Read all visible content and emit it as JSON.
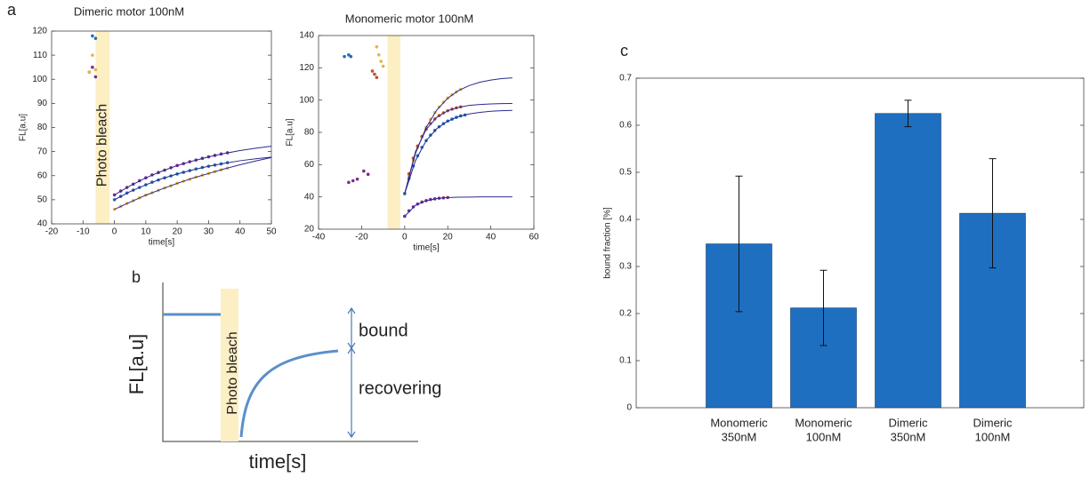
{
  "panels": [
    "a",
    "b",
    "c"
  ],
  "schematic": {
    "ylabel": "FL[a.u]",
    "xlabel": "time[s]",
    "band_label": "Photo bleach",
    "labels": [
      "bound",
      "recovering"
    ]
  },
  "chart_data": [
    {
      "type": "scatter",
      "title": "Dimeric motor 100nM",
      "xlabel": "time[s]",
      "ylabel": "FL[a.u]",
      "xlim": [
        -20,
        50
      ],
      "ylim": [
        40,
        120
      ],
      "xticks": [
        -20,
        -10,
        0,
        10,
        20,
        30,
        40,
        50
      ],
      "yticks": [
        40,
        50,
        60,
        70,
        80,
        90,
        100,
        110,
        120
      ],
      "band": {
        "x": [
          -6,
          -1.5
        ],
        "label": "Photo bleach",
        "color": "#fdefc4"
      },
      "series": [
        {
          "mode": "markers",
          "color": "#7b2d8e",
          "x": [
            -8,
            -7,
            -6,
            0,
            2,
            4,
            6,
            8,
            10,
            12,
            14,
            16,
            18,
            20,
            22,
            24,
            26,
            28,
            30,
            32,
            34,
            36
          ],
          "values": [
            103,
            105,
            101,
            52,
            53.6,
            55.1,
            56.5,
            57.9,
            59.1,
            60.3,
            61.3,
            62.3,
            63.3,
            64.2,
            65,
            65.8,
            66.5,
            67.2,
            67.8,
            68.4,
            69,
            69.5
          ]
        },
        {
          "mode": "markers",
          "color": "#1f6fba",
          "x": [
            -7,
            -6,
            0,
            2,
            4,
            6,
            8,
            10,
            12,
            14,
            16,
            18,
            20,
            22,
            24,
            26,
            28,
            30,
            32,
            34,
            36
          ],
          "values": [
            118,
            117,
            50,
            51.4,
            52.8,
            54,
            55.1,
            56.2,
            57.3,
            58.2,
            59.1,
            59.9,
            60.7,
            61.4,
            62.1,
            62.8,
            63.4,
            63.9,
            64.4,
            64.9,
            65.4
          ]
        },
        {
          "mode": "markers",
          "color": "#e8b341",
          "x": [
            -8,
            -7,
            -6,
            0,
            2,
            4,
            6,
            8,
            10,
            12,
            14,
            16,
            18,
            20,
            22,
            24,
            26,
            28,
            30,
            32,
            34,
            36
          ],
          "values": [
            103,
            110,
            104,
            46,
            47.2,
            48.5,
            49.6,
            50.8,
            51.9,
            52.9,
            53.9,
            54.9,
            55.8,
            56.8,
            57.7,
            58.5,
            59.4,
            60.2,
            60.9,
            61.7,
            62.4,
            63.1
          ]
        },
        {
          "mode": "line",
          "color": "#2b2b8f",
          "x": [
            0,
            5,
            10,
            15,
            20,
            25,
            30,
            35,
            40,
            45,
            50
          ],
          "values": [
            52,
            55.8,
            59.1,
            61.8,
            64.2,
            66.1,
            67.8,
            69.2,
            70.4,
            71.4,
            72.2
          ]
        },
        {
          "mode": "line",
          "color": "#2b2b8f",
          "x": [
            0,
            5,
            10,
            15,
            20,
            25,
            30,
            35,
            40,
            45,
            50
          ],
          "values": [
            50,
            53.4,
            56.2,
            58.7,
            60.7,
            62.4,
            63.9,
            65.1,
            66.2,
            67,
            67.7
          ]
        },
        {
          "mode": "line",
          "color": "#2b2b8f",
          "x": [
            0,
            5,
            10,
            15,
            20,
            25,
            30,
            35,
            40,
            45,
            50
          ],
          "values": [
            46,
            49,
            51.9,
            54.4,
            56.8,
            59,
            60.9,
            62.8,
            64.5,
            66.1,
            67.5
          ]
        }
      ]
    },
    {
      "type": "scatter",
      "title": "Monomeric motor 100nM",
      "xlabel": "time[s]",
      "ylabel": "FL[a.u]",
      "xlim": [
        -40,
        60
      ],
      "ylim": [
        20,
        140
      ],
      "xticks": [
        -40,
        -20,
        0,
        20,
        40,
        60
      ],
      "yticks": [
        20,
        40,
        60,
        80,
        100,
        120,
        140
      ],
      "band": {
        "x": [
          -8,
          -2
        ],
        "color": "#fdefc4"
      },
      "series": [
        {
          "mode": "markers",
          "color": "#e8b341",
          "x": [
            -13,
            -12,
            -11,
            -10,
            0,
            2,
            4,
            6,
            8,
            10,
            12,
            14,
            16,
            18,
            20,
            22,
            24,
            26
          ],
          "values": [
            133,
            128,
            124,
            121,
            42,
            53.2,
            62.7,
            70.7,
            77.5,
            83.2,
            88.1,
            92.3,
            95.7,
            98.7,
            101.2,
            103.3,
            105.1,
            106.6
          ]
        },
        {
          "mode": "markers",
          "color": "#c0513a",
          "x": [
            -15,
            -14,
            -13,
            0,
            2,
            4,
            6,
            8,
            10,
            12,
            14,
            16,
            18,
            20,
            22,
            24,
            26
          ],
          "values": [
            118,
            116,
            114,
            42,
            54.4,
            64,
            71.6,
            77.4,
            81.9,
            85.5,
            88.3,
            90.4,
            92.1,
            93.4,
            94.4,
            95.2,
            95.8
          ]
        },
        {
          "mode": "markers",
          "color": "#1f6fba",
          "x": [
            -28,
            -26,
            -25,
            0,
            2,
            4,
            6,
            8,
            10,
            12,
            14,
            16,
            18,
            20,
            22,
            24,
            26,
            28
          ],
          "values": [
            127,
            128,
            127,
            42,
            51.4,
            59.2,
            65.5,
            70.7,
            74.9,
            78.3,
            81.2,
            83.5,
            85.4,
            87,
            88.2,
            89.3,
            90.2,
            90.8
          ]
        },
        {
          "mode": "markers",
          "color": "#7b2d8e",
          "x": [
            -26,
            -24,
            -22,
            -19,
            -17,
            0,
            2,
            4,
            6,
            8,
            10,
            12,
            14,
            16,
            18,
            20
          ],
          "values": [
            49,
            50,
            51,
            56,
            54,
            28,
            31.4,
            33.8,
            35.6,
            36.8,
            37.7,
            38.4,
            38.8,
            39.2,
            39.4,
            39.6
          ]
        },
        {
          "mode": "line",
          "color": "#2b2b8f",
          "x": [
            0,
            5,
            10,
            15,
            20,
            25,
            30,
            35,
            40,
            45,
            50
          ],
          "values": [
            42,
            66.9,
            83.2,
            94,
            101.2,
            105.9,
            109,
            111.1,
            112.4,
            113.3,
            113.8
          ]
        },
        {
          "mode": "line",
          "color": "#2b2b8f",
          "x": [
            0,
            5,
            10,
            15,
            20,
            25,
            30,
            35,
            40,
            45,
            50
          ],
          "values": [
            42,
            68,
            81.9,
            89.4,
            93.4,
            95.5,
            96.7,
            97.3,
            97.6,
            97.8,
            97.9
          ]
        },
        {
          "mode": "line",
          "color": "#2b2b8f",
          "x": [
            0,
            5,
            10,
            15,
            20,
            25,
            30,
            35,
            40,
            45,
            50
          ],
          "values": [
            42,
            62.4,
            74.9,
            82.4,
            87,
            89.7,
            91.4,
            92.4,
            93.1,
            93.4,
            93.6
          ]
        },
        {
          "mode": "line",
          "color": "#2b2b8f",
          "x": [
            0,
            5,
            10,
            15,
            20,
            25,
            30,
            35,
            40,
            45,
            50
          ],
          "values": [
            28,
            34.8,
            37.7,
            39,
            39.6,
            39.8,
            39.9,
            40,
            40,
            40,
            40
          ]
        }
      ]
    },
    {
      "type": "bar",
      "ylabel": "bound fraction [%]",
      "color": "#1f6fc1",
      "categories": [
        [
          "Monomeric",
          "350nM"
        ],
        [
          "Monomeric",
          "100nM"
        ],
        [
          "Dimeric",
          "350nM"
        ],
        [
          "Dimeric",
          "100nM"
        ]
      ],
      "values": [
        0.348,
        0.212,
        0.625,
        0.413
      ],
      "errors": [
        0.144,
        0.08,
        0.028,
        0.116
      ],
      "ylim": [
        0,
        0.7
      ],
      "yticks": [
        0,
        0.1,
        0.2,
        0.3,
        0.4,
        0.5,
        0.6,
        0.7
      ]
    }
  ]
}
